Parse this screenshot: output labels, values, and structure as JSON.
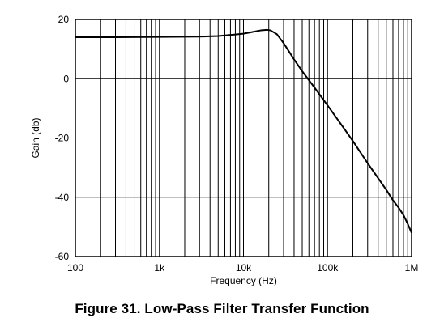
{
  "figure": {
    "caption": "Figure 31.  Low-Pass Filter Transfer Function"
  },
  "chart_data": {
    "type": "line",
    "title": "",
    "xlabel": "Frequency (Hz)",
    "ylabel": "Gain (db)",
    "x_scale": "log",
    "xlim": [
      100,
      1000000
    ],
    "ylim": [
      -60,
      20
    ],
    "x_ticks": [
      {
        "value": 100,
        "label": "100"
      },
      {
        "value": 1000,
        "label": "1k"
      },
      {
        "value": 10000,
        "label": "10k"
      },
      {
        "value": 100000,
        "label": "100k"
      },
      {
        "value": 1000000,
        "label": "1M"
      }
    ],
    "y_ticks": [
      {
        "value": 20,
        "label": "20"
      },
      {
        "value": 0,
        "label": "0"
      },
      {
        "value": -20,
        "label": "-20"
      },
      {
        "value": -40,
        "label": "-40"
      },
      {
        "value": -60,
        "label": "-60"
      }
    ],
    "grid": true,
    "series": [
      {
        "color": "#000000",
        "points": [
          [
            100,
            14.0
          ],
          [
            300,
            14.0
          ],
          [
            1000,
            14.1
          ],
          [
            3000,
            14.2
          ],
          [
            5000,
            14.4
          ],
          [
            8000,
            14.9
          ],
          [
            10000,
            15.2
          ],
          [
            13000,
            15.8
          ],
          [
            16000,
            16.3
          ],
          [
            19000,
            16.5
          ],
          [
            21000,
            16.3
          ],
          [
            25000,
            15.0
          ],
          [
            30000,
            12.0
          ],
          [
            40000,
            6.5
          ],
          [
            50000,
            2.5
          ],
          [
            70000,
            -3.0
          ],
          [
            100000,
            -9.0
          ],
          [
            150000,
            -16.0
          ],
          [
            200000,
            -21.0
          ],
          [
            300000,
            -28.5
          ],
          [
            500000,
            -37.5
          ],
          [
            600000,
            -41.0
          ],
          [
            700000,
            -43.5
          ],
          [
            800000,
            -46.0
          ],
          [
            900000,
            -49.0
          ],
          [
            1000000,
            -52.0
          ]
        ]
      }
    ]
  }
}
